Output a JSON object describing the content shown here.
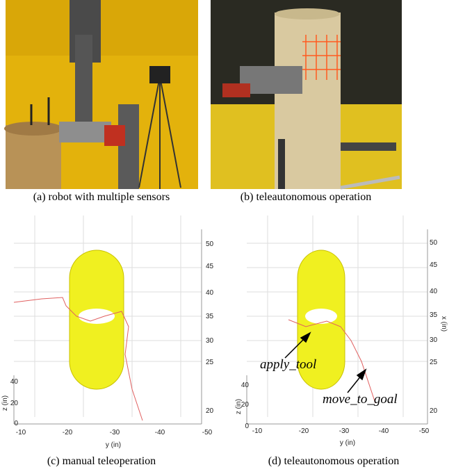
{
  "panels": [
    {
      "caption": "(a) robot with multiple sensors"
    },
    {
      "caption": "(b) teleautonomous operation"
    },
    {
      "caption": "(c) manual teleoperation",
      "y_axis_label": "y (in)",
      "z_axis_label": "z (in)",
      "y_ticks": [
        "-10",
        "-20",
        "-30",
        "-40",
        "-50"
      ],
      "z_ticks": [
        "0",
        "20",
        "40"
      ],
      "x_ticks": [
        "50",
        "45",
        "40",
        "35",
        "30",
        "25",
        "20"
      ]
    },
    {
      "caption": "(d) teleautonomous operation",
      "y_axis_label": "y (in)",
      "z_axis_label": "z (in)",
      "x_axis_label": "x (in)",
      "y_ticks": [
        "-10",
        "-20",
        "-30",
        "-40",
        "-50"
      ],
      "z_ticks": [
        "0",
        "20",
        "40"
      ],
      "x_ticks": [
        "50",
        "45",
        "40",
        "35",
        "30",
        "25",
        "20"
      ],
      "annotations": [
        "apply_tool",
        "move_to_goal"
      ]
    }
  ]
}
